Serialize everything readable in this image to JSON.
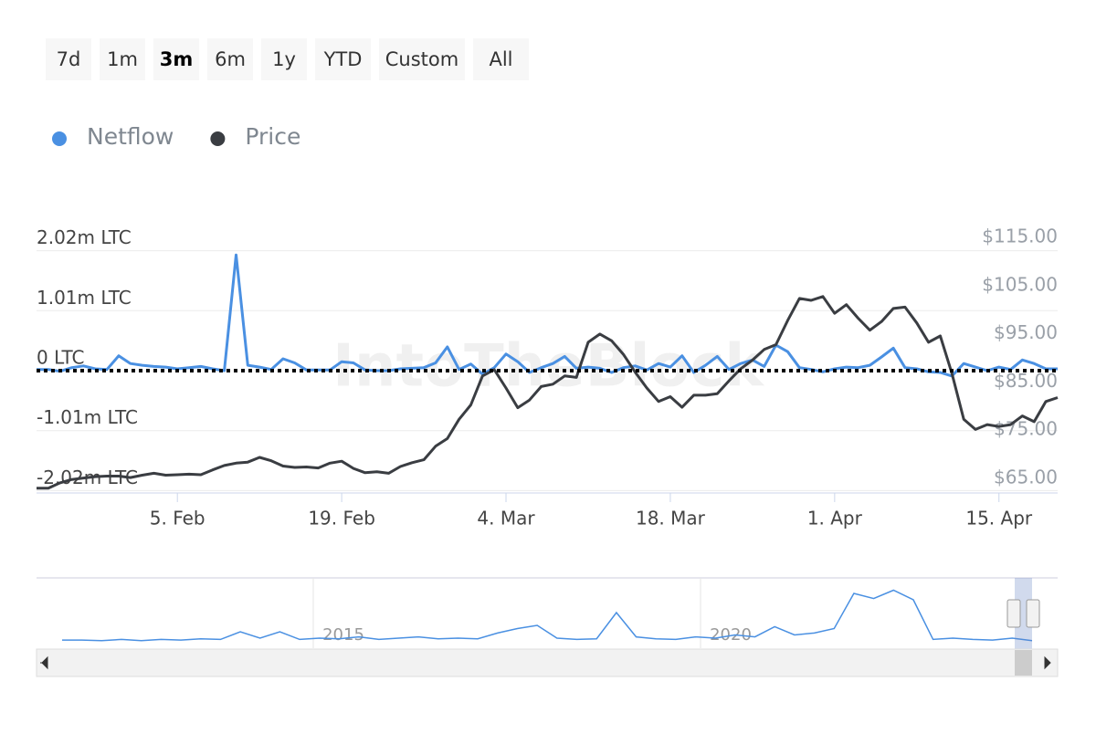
{
  "range_buttons": [
    "7d",
    "1m",
    "3m",
    "6m",
    "1y",
    "YTD",
    "Custom",
    "All"
  ],
  "selected_button": 2,
  "watermark": "IntoTheBlock",
  "chart_data": {
    "type": "line",
    "categories": [
      null,
      null,
      null,
      null,
      null,
      null,
      null,
      null,
      null,
      null,
      null,
      null,
      "5. Feb",
      null,
      null,
      null,
      null,
      null,
      null,
      null,
      null,
      null,
      null,
      null,
      null,
      null,
      "19. Feb",
      null,
      null,
      null,
      null,
      null,
      null,
      null,
      null,
      null,
      null,
      null,
      null,
      null,
      "4. Mar",
      null,
      null,
      null,
      null,
      null,
      null,
      null,
      null,
      null,
      null,
      null,
      null,
      null,
      "18. Mar",
      null,
      null,
      null,
      null,
      null,
      null,
      null,
      null,
      null,
      null,
      null,
      null,
      null,
      "1. Apr",
      null,
      null,
      null,
      null,
      null,
      null,
      null,
      null,
      null,
      null,
      null,
      null,
      null,
      "15. Apr",
      null,
      null,
      null,
      null,
      null
    ],
    "series": [
      {
        "name": "Netflow",
        "color": "#4a90e2",
        "axis": "y",
        "values": [
          0.02,
          0.02,
          -0.01,
          0.05,
          0.08,
          0.03,
          0.02,
          0.25,
          0.12,
          0.09,
          0.07,
          0.06,
          0.03,
          0.05,
          0.07,
          0.03,
          0.0,
          1.95,
          0.09,
          0.06,
          0.02,
          0.2,
          0.13,
          0.01,
          0.01,
          0.01,
          0.15,
          0.13,
          0.01,
          0.0,
          0.0,
          0.03,
          0.04,
          0.05,
          0.13,
          0.4,
          0.02,
          0.11,
          -0.06,
          0.05,
          0.28,
          0.15,
          -0.03,
          0.05,
          0.12,
          0.24,
          0.04,
          0.06,
          0.04,
          -0.03,
          0.05,
          0.08,
          0.01,
          0.12,
          0.06,
          0.25,
          -0.03,
          0.09,
          0.24,
          0.02,
          0.12,
          0.18,
          0.07,
          0.43,
          0.32,
          0.05,
          0.02,
          -0.02,
          0.03,
          0.06,
          0.05,
          0.09,
          0.23,
          0.38,
          0.05,
          0.03,
          -0.02,
          -0.03,
          -0.09,
          0.12,
          0.06,
          0.0,
          0.06,
          0.02,
          0.18,
          0.12,
          0.03,
          0.03
        ]
      },
      {
        "name": "Price",
        "color": "#3a3d42",
        "axis": "y2",
        "values": [
          65.2,
          65.2,
          66.3,
          67.0,
          67.3,
          67.6,
          67.7,
          67.7,
          67.4,
          67.9,
          68.3,
          67.9,
          68.0,
          68.1,
          68.0,
          69.0,
          69.9,
          70.4,
          70.6,
          71.6,
          70.9,
          69.8,
          69.5,
          69.6,
          69.4,
          70.4,
          70.8,
          69.3,
          68.4,
          68.6,
          68.3,
          69.7,
          70.5,
          71.1,
          73.9,
          75.5,
          79.5,
          82.5,
          88.5,
          89.8,
          86.0,
          81.9,
          83.5,
          86.3,
          86.8,
          88.5,
          88.2,
          95.5,
          97.2,
          95.8,
          93.0,
          89.3,
          86.0,
          83.2,
          84.2,
          82.0,
          84.5,
          84.5,
          84.8,
          87.5,
          90.0,
          91.8,
          94.0,
          95.0,
          100.0,
          104.6,
          104.2,
          105.0,
          101.5,
          103.3,
          100.5,
          98.0,
          99.8,
          102.5,
          102.8,
          99.5,
          95.5,
          96.8,
          89.0,
          79.5,
          77.4,
          78.4,
          78.0,
          78.4,
          80.2,
          79.0,
          83.2,
          84.0
        ]
      }
    ],
    "ylim": [
      -2.06,
      2.06
    ],
    "yticks": [
      {
        "value": 2.02,
        "label": "2.02m LTC"
      },
      {
        "value": 1.01,
        "label": "1.01m LTC"
      },
      {
        "value": 0,
        "label": "0 LTC"
      },
      {
        "value": -1.01,
        "label": "-1.01m LTC"
      },
      {
        "value": -2.02,
        "label": "-2.02m LTC"
      }
    ],
    "y2lim": [
      64.2,
      115
    ],
    "y2ticks": [
      {
        "value": 115,
        "label": "$115.00"
      },
      {
        "value": 105,
        "label": "$105.00"
      },
      {
        "value": 95,
        "label": "$95.00"
      },
      {
        "value": 85,
        "label": "$85.00"
      },
      {
        "value": 75,
        "label": "$75.00"
      },
      {
        "value": 65,
        "label": "$65.00"
      }
    ],
    "grid": true,
    "legend": "top-left"
  },
  "navigator": {
    "color": "#4a90e2",
    "labels": [
      "2015",
      "2020"
    ],
    "values": [
      0.07,
      0.07,
      0.06,
      0.08,
      0.06,
      0.08,
      0.07,
      0.09,
      0.08,
      0.2,
      0.1,
      0.2,
      0.08,
      0.1,
      0.09,
      0.12,
      0.08,
      0.1,
      0.12,
      0.09,
      0.1,
      0.09,
      0.18,
      0.25,
      0.3,
      0.1,
      0.08,
      0.09,
      0.5,
      0.12,
      0.09,
      0.08,
      0.12,
      0.1,
      0.15,
      0.12,
      0.28,
      0.15,
      0.18,
      0.25,
      0.8,
      0.72,
      0.85,
      0.7,
      0.08,
      0.1,
      0.08,
      0.07,
      0.1,
      0.06
    ]
  }
}
